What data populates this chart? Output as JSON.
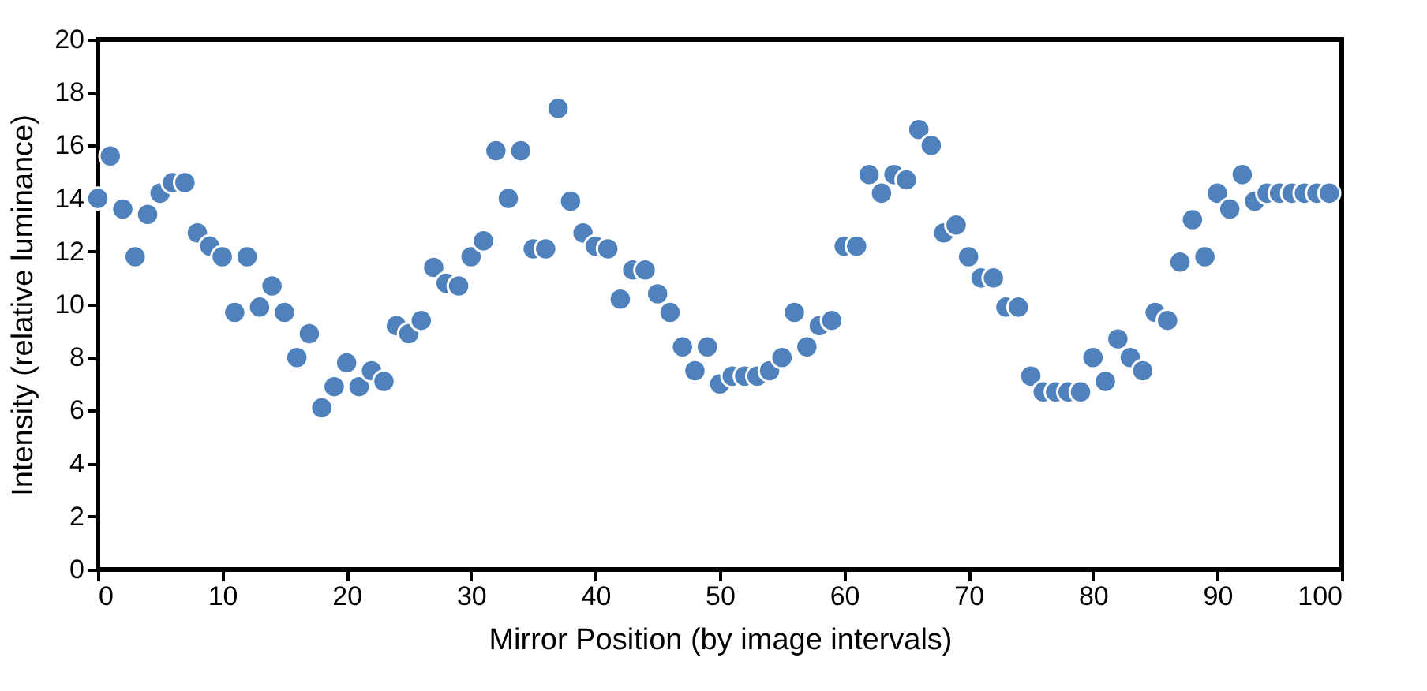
{
  "chart_data": {
    "type": "scatter",
    "xlabel": "Mirror Position (by image intervals)",
    "ylabel": "Intensity (relative luminance)",
    "x": [
      0,
      1,
      2,
      3,
      4,
      5,
      6,
      7,
      8,
      9,
      10,
      11,
      12,
      13,
      14,
      15,
      16,
      17,
      18,
      19,
      20,
      21,
      22,
      23,
      24,
      25,
      26,
      27,
      28,
      29,
      30,
      31,
      32,
      33,
      34,
      35,
      36,
      37,
      38,
      39,
      40,
      41,
      42,
      43,
      44,
      45,
      46,
      47,
      48,
      49,
      50,
      51,
      52,
      53,
      54,
      55,
      56,
      57,
      58,
      59,
      60,
      61,
      62,
      63,
      64,
      65,
      66,
      67,
      68,
      69,
      70,
      71,
      72,
      73,
      74,
      75,
      76,
      77,
      78,
      79,
      80,
      81,
      82,
      83,
      84,
      85,
      86,
      87,
      88,
      89,
      90,
      91,
      92,
      93,
      94,
      95,
      96,
      97,
      98,
      99
    ],
    "series": [
      {
        "color": "#4f81bd",
        "values": [
          14.0,
          15.6,
          13.6,
          11.8,
          13.4,
          14.2,
          14.6,
          14.6,
          12.7,
          12.2,
          11.8,
          9.7,
          11.8,
          9.9,
          10.7,
          9.7,
          8.0,
          8.9,
          6.1,
          6.9,
          7.8,
          6.9,
          7.5,
          7.1,
          9.2,
          8.9,
          9.4,
          11.4,
          10.8,
          10.7,
          11.8,
          12.4,
          15.8,
          14.0,
          15.8,
          12.1,
          12.1,
          17.4,
          13.9,
          12.7,
          12.2,
          12.1,
          10.2,
          11.3,
          11.3,
          10.4,
          9.7,
          8.4,
          7.5,
          8.4,
          7.0,
          7.3,
          7.3,
          7.3,
          7.5,
          8.0,
          9.7,
          8.4,
          9.2,
          9.4,
          12.2,
          12.2,
          14.9,
          14.2,
          14.9,
          14.7,
          16.6,
          16.0,
          12.7,
          13.0,
          11.8,
          11.0,
          11.0,
          9.9,
          9.9,
          7.3,
          6.7,
          6.7,
          6.7,
          6.7,
          8.0,
          7.1,
          8.7,
          8.0,
          7.5,
          9.7,
          9.4,
          11.6,
          13.2,
          11.8,
          14.2,
          13.6,
          14.9,
          13.9,
          14.2,
          14.2,
          14.2,
          14.2,
          14.2,
          14.2
        ]
      }
    ],
    "xlim": [
      0,
      100
    ],
    "xticks": [
      0,
      10,
      20,
      30,
      40,
      50,
      60,
      70,
      80,
      90,
      100
    ],
    "ylim": [
      0,
      20
    ],
    "yticks": [
      0,
      2,
      4,
      6,
      8,
      10,
      12,
      14,
      16,
      18,
      20
    ],
    "grid": false,
    "marker": "circle"
  }
}
